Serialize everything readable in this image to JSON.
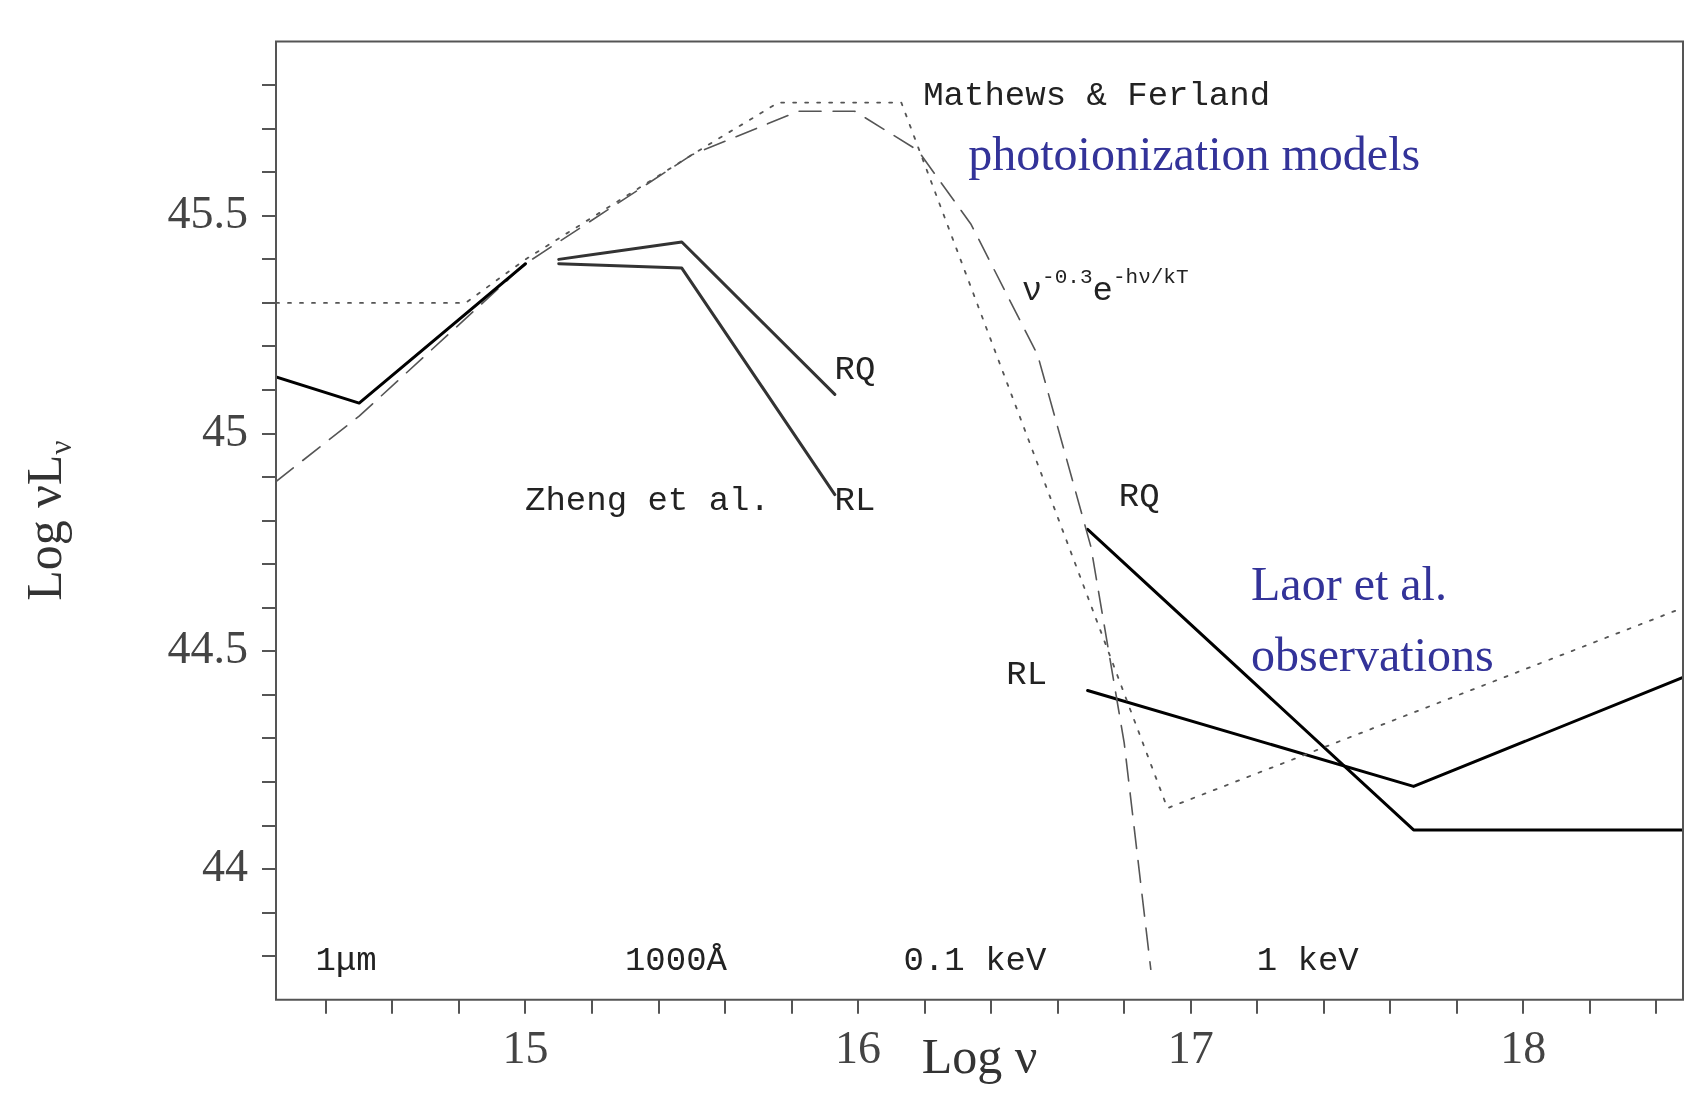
{
  "chart_data": {
    "type": "line",
    "xlabel": "Log ν",
    "ylabel": "Log νL$_{ν}$",
    "xlim": [
      14.25,
      18.48
    ],
    "ylim": [
      43.7,
      45.9
    ],
    "xticks": [
      {
        "value": 14.4,
        "label": null
      },
      {
        "value": 14.6,
        "label": null
      },
      {
        "value": 14.8,
        "label": null
      },
      15,
      {
        "value": 15.2,
        "label": null
      },
      {
        "value": 15.4,
        "label": null
      },
      {
        "value": 15.6,
        "label": null
      },
      {
        "value": 15.8,
        "label": null
      },
      16,
      {
        "value": 16.2,
        "label": null
      },
      {
        "value": 16.4,
        "label": null
      },
      {
        "value": 16.6,
        "label": null
      },
      {
        "value": 16.8,
        "label": null
      },
      17,
      {
        "value": 17.2,
        "label": null
      },
      {
        "value": 17.4,
        "label": null
      },
      {
        "value": 17.6,
        "label": null
      },
      {
        "value": 17.8,
        "label": null
      },
      18,
      {
        "value": 18.2,
        "label": null
      },
      {
        "value": 18.4,
        "label": null
      }
    ],
    "yticks": [
      {
        "value": 43.8,
        "label": null
      },
      {
        "value": 43.9,
        "label": null
      },
      44,
      {
        "value": 44.1,
        "label": null
      },
      {
        "value": 44.2,
        "label": null
      },
      {
        "value": 44.3,
        "label": null
      },
      {
        "value": 44.4,
        "label": null
      },
      44.5,
      {
        "value": 44.6,
        "label": null
      },
      {
        "value": 44.7,
        "label": null
      },
      {
        "value": 44.8,
        "label": null
      },
      {
        "value": 44.9,
        "label": null
      },
      45,
      {
        "value": 45.1,
        "label": null
      },
      {
        "value": 45.2,
        "label": null
      },
      {
        "value": 45.3,
        "label": null
      },
      {
        "value": 45.4,
        "label": null
      },
      45.5,
      {
        "value": 45.6,
        "label": null
      },
      {
        "value": 45.7,
        "label": null
      },
      {
        "value": 45.8,
        "label": null
      }
    ],
    "grid": false,
    "legend": false,
    "marker": "none",
    "series": [
      {
        "color": "#000000",
        "line_style": "solid",
        "x": [
          14.25,
          14.5,
          15.0
        ],
        "values": [
          45.13,
          45.07,
          45.39
        ]
      },
      {
        "color": "#333333",
        "line_style": "solid",
        "x": [
          15.1,
          15.47,
          15.93
        ],
        "values": [
          45.4,
          45.44,
          45.09
        ]
      },
      {
        "color": "#333333",
        "line_style": "solid",
        "x": [
          15.1,
          15.47,
          15.93
        ],
        "values": [
          45.39,
          45.38,
          44.86
        ]
      },
      {
        "color": "#555555",
        "line_style": "dotted",
        "x": [
          14.25,
          14.82,
          15.0,
          15.5,
          15.76,
          16.13,
          16.93,
          18.48
        ],
        "values": [
          45.3,
          45.3,
          45.4,
          45.64,
          45.76,
          45.76,
          44.14,
          44.6
        ]
      },
      {
        "color": "#555555",
        "line_style": "dashed",
        "x": [
          14.25,
          14.5,
          15.0,
          15.5,
          15.82,
          15.99,
          16.18,
          16.34,
          16.54,
          16.7,
          16.8,
          16.88
        ],
        "values": [
          44.89,
          45.04,
          45.39,
          45.64,
          45.74,
          45.74,
          45.65,
          45.48,
          45.18,
          44.74,
          44.29,
          43.77
        ]
      },
      {
        "color": "#000000",
        "line_style": "solid",
        "x": [
          16.69,
          17.67,
          18.48
        ],
        "values": [
          44.78,
          44.09,
          44.09
        ]
      },
      {
        "color": "#000000",
        "line_style": "solid",
        "x": [
          16.69,
          17.67,
          18.48
        ],
        "values": [
          44.41,
          44.19,
          44.44
        ]
      }
    ],
    "annotations": [
      "Mathews & Ferland",
      "photoionization models",
      "ν$^{-0.3}$e$^{-hν/kT}$",
      "RQ",
      "RL",
      "Zheng et al.",
      "RQ",
      "RL",
      "Laor et al.",
      "observations",
      "1μm",
      "1000Å",
      "0.1 keV",
      "1 keV"
    ]
  }
}
